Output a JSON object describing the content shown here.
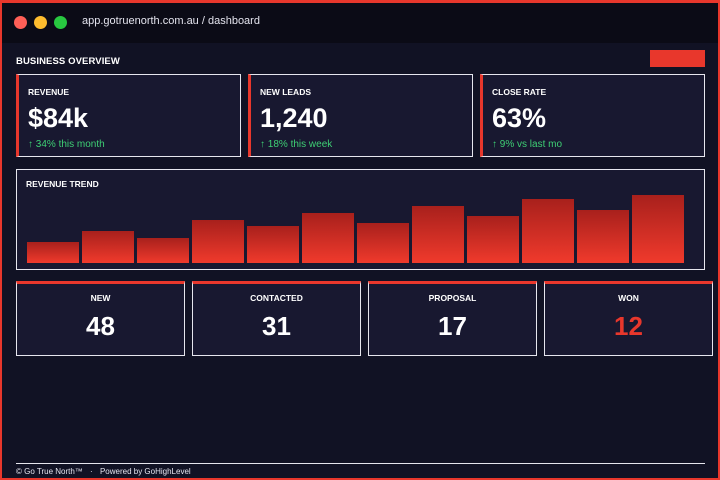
{
  "browser": {
    "url": "app.gotruenorth.com.au / dashboard"
  },
  "header": {
    "title": "BUSINESS OVERVIEW"
  },
  "kpis": [
    {
      "label": "REVENUE",
      "value": "$84k",
      "delta": "↑ 34% this month"
    },
    {
      "label": "NEW LEADS",
      "value": "1,240",
      "delta": "↑ 18% this week"
    },
    {
      "label": "CLOSE RATE",
      "value": "63%",
      "delta": "↑ 9% vs last mo"
    }
  ],
  "chart_data": {
    "type": "bar",
    "title": "REVENUE TREND",
    "categories": [
      "",
      "",
      "",
      "",
      "",
      "",
      "",
      "",
      "",
      "",
      "",
      ""
    ],
    "values": [
      30,
      45,
      35,
      60,
      52,
      70,
      56,
      80,
      66,
      90,
      74,
      96
    ],
    "ylim": [
      0,
      100
    ],
    "xlabel": "",
    "ylabel": ""
  },
  "pipeline": [
    {
      "label": "NEW",
      "value": "48"
    },
    {
      "label": "CONTACTED",
      "value": "31"
    },
    {
      "label": "PROPOSAL",
      "value": "17"
    },
    {
      "label": "WON",
      "value": "12"
    }
  ],
  "footer": {
    "copyright": "© Go True North™",
    "separator": "·",
    "powered": "Powered by GoHighLevel"
  },
  "colors": {
    "accent": "#e8372c",
    "positive": "#3ecf74",
    "background": "#111224",
    "card": "#181830"
  }
}
